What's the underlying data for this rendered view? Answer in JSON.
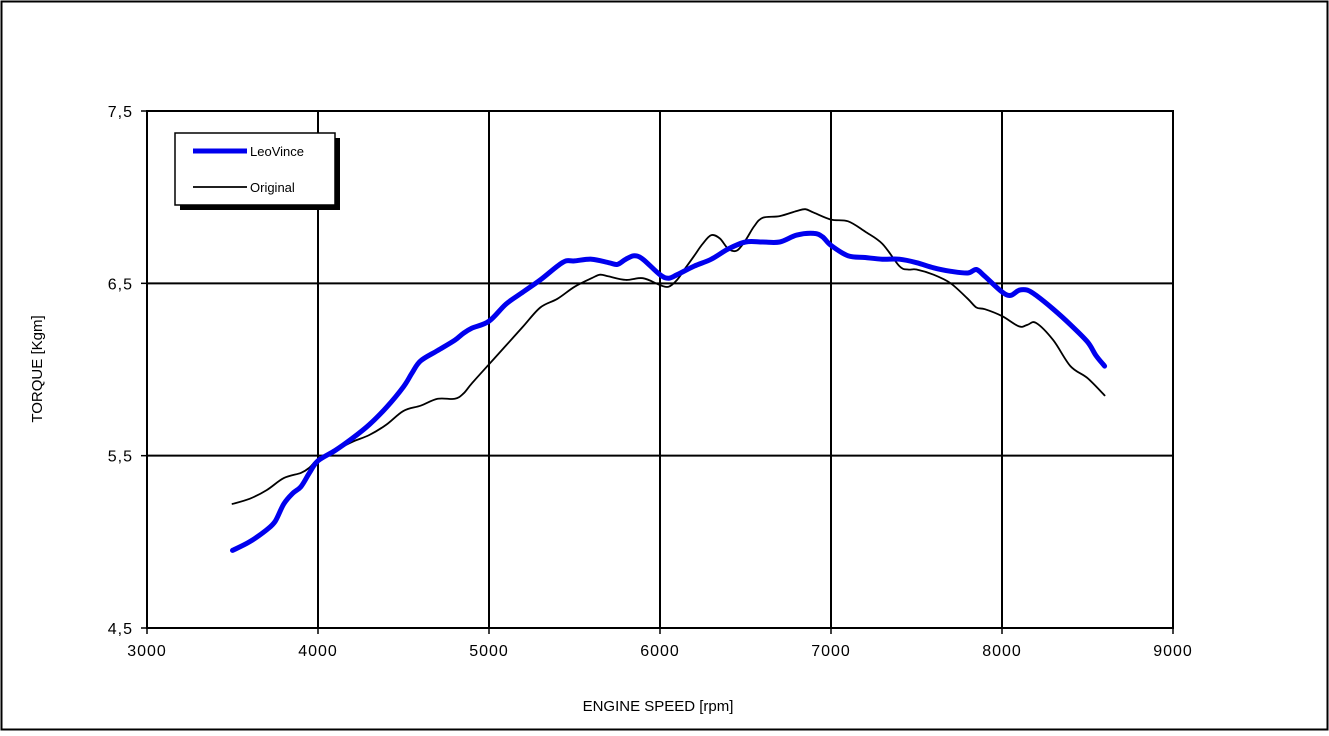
{
  "chart_data": {
    "type": "line",
    "title": "",
    "xlabel": "ENGINE SPEED [rpm]",
    "ylabel": "TORQUE [Kgm]",
    "xlim": [
      3000,
      9000
    ],
    "ylim": [
      4.5,
      7.5
    ],
    "xticks": [
      3000,
      4000,
      5000,
      6000,
      7000,
      8000,
      9000
    ],
    "xtick_labels": [
      "3000",
      "4000",
      "5000",
      "6000",
      "7000",
      "8000",
      "9000"
    ],
    "yticks": [
      4.5,
      5.5,
      6.5,
      7.5
    ],
    "ytick_labels": [
      "4,5",
      "5,5",
      "6,5",
      "7,5"
    ],
    "grid": true,
    "legend_position": "top-left",
    "series": [
      {
        "name": "LeoVince",
        "color": "#0000ee",
        "points": [
          [
            3500,
            4.95
          ],
          [
            3600,
            5.0
          ],
          [
            3700,
            5.07
          ],
          [
            3750,
            5.12
          ],
          [
            3800,
            5.22
          ],
          [
            3850,
            5.28
          ],
          [
            3900,
            5.32
          ],
          [
            3950,
            5.4
          ],
          [
            4000,
            5.47
          ],
          [
            4100,
            5.53
          ],
          [
            4200,
            5.6
          ],
          [
            4300,
            5.68
          ],
          [
            4400,
            5.78
          ],
          [
            4500,
            5.9
          ],
          [
            4550,
            5.98
          ],
          [
            4600,
            6.05
          ],
          [
            4700,
            6.11
          ],
          [
            4800,
            6.17
          ],
          [
            4850,
            6.21
          ],
          [
            4900,
            6.24
          ],
          [
            5000,
            6.28
          ],
          [
            5100,
            6.38
          ],
          [
            5200,
            6.45
          ],
          [
            5300,
            6.52
          ],
          [
            5400,
            6.6
          ],
          [
            5450,
            6.63
          ],
          [
            5500,
            6.63
          ],
          [
            5600,
            6.64
          ],
          [
            5700,
            6.62
          ],
          [
            5750,
            6.61
          ],
          [
            5800,
            6.64
          ],
          [
            5850,
            6.66
          ],
          [
            5900,
            6.64
          ],
          [
            6000,
            6.55
          ],
          [
            6050,
            6.53
          ],
          [
            6100,
            6.55
          ],
          [
            6200,
            6.6
          ],
          [
            6300,
            6.64
          ],
          [
            6400,
            6.7
          ],
          [
            6500,
            6.74
          ],
          [
            6600,
            6.74
          ],
          [
            6700,
            6.74
          ],
          [
            6800,
            6.78
          ],
          [
            6900,
            6.79
          ],
          [
            6950,
            6.77
          ],
          [
            7000,
            6.72
          ],
          [
            7100,
            6.66
          ],
          [
            7200,
            6.65
          ],
          [
            7300,
            6.64
          ],
          [
            7400,
            6.64
          ],
          [
            7500,
            6.62
          ],
          [
            7600,
            6.59
          ],
          [
            7700,
            6.57
          ],
          [
            7800,
            6.56
          ],
          [
            7850,
            6.58
          ],
          [
            7900,
            6.54
          ],
          [
            8000,
            6.45
          ],
          [
            8050,
            6.43
          ],
          [
            8100,
            6.46
          ],
          [
            8150,
            6.46
          ],
          [
            8200,
            6.43
          ],
          [
            8300,
            6.35
          ],
          [
            8400,
            6.26
          ],
          [
            8500,
            6.16
          ],
          [
            8550,
            6.08
          ],
          [
            8600,
            6.02
          ]
        ]
      },
      {
        "name": "Original",
        "color": "#000000",
        "points": [
          [
            3500,
            5.22
          ],
          [
            3600,
            5.25
          ],
          [
            3700,
            5.3
          ],
          [
            3800,
            5.37
          ],
          [
            3900,
            5.4
          ],
          [
            3950,
            5.43
          ],
          [
            4000,
            5.48
          ],
          [
            4100,
            5.53
          ],
          [
            4200,
            5.58
          ],
          [
            4300,
            5.62
          ],
          [
            4400,
            5.68
          ],
          [
            4500,
            5.76
          ],
          [
            4600,
            5.79
          ],
          [
            4700,
            5.83
          ],
          [
            4800,
            5.83
          ],
          [
            4850,
            5.86
          ],
          [
            4900,
            5.92
          ],
          [
            5000,
            6.03
          ],
          [
            5100,
            6.14
          ],
          [
            5200,
            6.25
          ],
          [
            5300,
            6.36
          ],
          [
            5400,
            6.41
          ],
          [
            5500,
            6.48
          ],
          [
            5600,
            6.53
          ],
          [
            5650,
            6.55
          ],
          [
            5700,
            6.54
          ],
          [
            5800,
            6.52
          ],
          [
            5900,
            6.53
          ],
          [
            6000,
            6.49
          ],
          [
            6050,
            6.48
          ],
          [
            6100,
            6.52
          ],
          [
            6150,
            6.59
          ],
          [
            6200,
            6.66
          ],
          [
            6250,
            6.73
          ],
          [
            6300,
            6.78
          ],
          [
            6350,
            6.76
          ],
          [
            6400,
            6.7
          ],
          [
            6450,
            6.69
          ],
          [
            6500,
            6.75
          ],
          [
            6550,
            6.83
          ],
          [
            6600,
            6.88
          ],
          [
            6700,
            6.89
          ],
          [
            6800,
            6.92
          ],
          [
            6850,
            6.93
          ],
          [
            6900,
            6.91
          ],
          [
            7000,
            6.87
          ],
          [
            7100,
            6.86
          ],
          [
            7200,
            6.8
          ],
          [
            7300,
            6.73
          ],
          [
            7400,
            6.6
          ],
          [
            7450,
            6.58
          ],
          [
            7500,
            6.58
          ],
          [
            7600,
            6.55
          ],
          [
            7700,
            6.5
          ],
          [
            7800,
            6.41
          ],
          [
            7850,
            6.36
          ],
          [
            7900,
            6.35
          ],
          [
            8000,
            6.31
          ],
          [
            8100,
            6.25
          ],
          [
            8150,
            6.26
          ],
          [
            8200,
            6.27
          ],
          [
            8300,
            6.17
          ],
          [
            8400,
            6.02
          ],
          [
            8500,
            5.95
          ],
          [
            8600,
            5.85
          ]
        ]
      }
    ]
  }
}
